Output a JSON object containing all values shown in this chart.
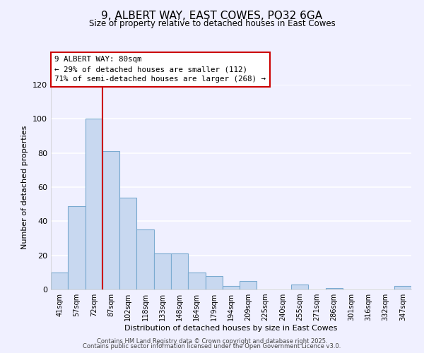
{
  "title": "9, ALBERT WAY, EAST COWES, PO32 6GA",
  "subtitle": "Size of property relative to detached houses in East Cowes",
  "xlabel": "Distribution of detached houses by size in East Cowes",
  "ylabel": "Number of detached properties",
  "bar_color": "#c8d8f0",
  "bar_edge_color": "#7aaad0",
  "background_color": "#f0f0ff",
  "grid_color": "#ffffff",
  "categories": [
    "41sqm",
    "57sqm",
    "72sqm",
    "87sqm",
    "102sqm",
    "118sqm",
    "133sqm",
    "148sqm",
    "164sqm",
    "179sqm",
    "194sqm",
    "209sqm",
    "225sqm",
    "240sqm",
    "255sqm",
    "271sqm",
    "286sqm",
    "301sqm",
    "316sqm",
    "332sqm",
    "347sqm"
  ],
  "values": [
    10,
    49,
    100,
    81,
    54,
    35,
    21,
    21,
    10,
    8,
    2,
    5,
    0,
    0,
    3,
    0,
    1,
    0,
    0,
    0,
    2
  ],
  "vline_index": 2,
  "vline_color": "#cc0000",
  "annotation_lines": [
    "9 ALBERT WAY: 80sqm",
    "← 29% of detached houses are smaller (112)",
    "71% of semi-detached houses are larger (268) →"
  ],
  "ylim": [
    0,
    120
  ],
  "yticks": [
    0,
    20,
    40,
    60,
    80,
    100,
    120
  ],
  "footer1": "Contains HM Land Registry data © Crown copyright and database right 2025.",
  "footer2": "Contains public sector information licensed under the Open Government Licence v3.0."
}
